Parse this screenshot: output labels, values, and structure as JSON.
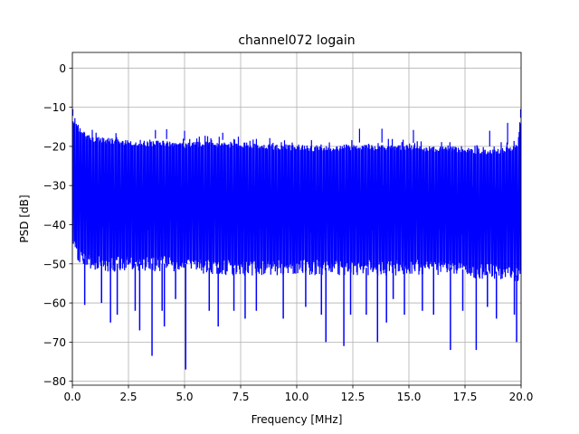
{
  "chart_data": {
    "type": "line",
    "title": "channel072 logain",
    "xlabel": "Frequency [MHz]",
    "ylabel": "PSD [dB]",
    "xlim": [
      0,
      20
    ],
    "ylim": [
      -81,
      4
    ],
    "xticks": [
      0,
      2.5,
      5,
      7.5,
      10,
      12.5,
      15,
      17.5,
      20
    ],
    "xtick_labels": [
      "0.0",
      "2.5",
      "5.0",
      "7.5",
      "10.0",
      "12.5",
      "15.0",
      "17.5",
      "20.0"
    ],
    "yticks": [
      0,
      -10,
      -20,
      -30,
      -40,
      -50,
      -60,
      -70,
      -80
    ],
    "ytick_labels": [
      "0",
      "−10",
      "−20",
      "−30",
      "−40",
      "−50",
      "−60",
      "−70",
      "−80"
    ],
    "grid": true,
    "series": [
      {
        "color": "#0000ff",
        "envelope": {
          "x": [
            0,
            0.1,
            0.3,
            0.6,
            1,
            2,
            3,
            4,
            5,
            6,
            7,
            8,
            9,
            10,
            11,
            12,
            13,
            14,
            15,
            16,
            17,
            18,
            19,
            19.8,
            20
          ],
          "upper": [
            -11,
            -12,
            -14,
            -15,
            -16,
            -16.5,
            -17,
            -17,
            -17.5,
            -17,
            -17.5,
            -17.5,
            -18,
            -18,
            -18.5,
            -18,
            -18,
            -18,
            -18,
            -18.5,
            -18.5,
            -19,
            -19,
            -18,
            -11
          ],
          "lower": [
            -44,
            -48,
            -50,
            -51,
            -52,
            -52,
            -52,
            -52,
            -52,
            -53,
            -53,
            -53,
            -53,
            -53,
            -53,
            -53,
            -53,
            -53,
            -53,
            -53,
            -53,
            -54,
            -54,
            -55,
            -55
          ]
        },
        "dips": [
          {
            "x": 0.25,
            "y": -49
          },
          {
            "x": 0.5,
            "y": -50
          },
          {
            "x": 0.55,
            "y": -60.5
          },
          {
            "x": 1.3,
            "y": -60
          },
          {
            "x": 1.7,
            "y": -65
          },
          {
            "x": 2.0,
            "y": -63
          },
          {
            "x": 2.8,
            "y": -62
          },
          {
            "x": 3.0,
            "y": -67
          },
          {
            "x": 3.55,
            "y": -73.5
          },
          {
            "x": 4.0,
            "y": -62
          },
          {
            "x": 4.1,
            "y": -66
          },
          {
            "x": 4.6,
            "y": -59
          },
          {
            "x": 5.05,
            "y": -77
          },
          {
            "x": 6.1,
            "y": -62
          },
          {
            "x": 6.5,
            "y": -66
          },
          {
            "x": 7.2,
            "y": -62
          },
          {
            "x": 7.7,
            "y": -64
          },
          {
            "x": 8.2,
            "y": -62
          },
          {
            "x": 9.4,
            "y": -64
          },
          {
            "x": 10.4,
            "y": -61
          },
          {
            "x": 11.1,
            "y": -63
          },
          {
            "x": 11.3,
            "y": -70
          },
          {
            "x": 12.1,
            "y": -71
          },
          {
            "x": 12.4,
            "y": -63
          },
          {
            "x": 13.1,
            "y": -63
          },
          {
            "x": 13.6,
            "y": -70
          },
          {
            "x": 14.0,
            "y": -65
          },
          {
            "x": 14.3,
            "y": -59
          },
          {
            "x": 14.8,
            "y": -63
          },
          {
            "x": 15.6,
            "y": -62
          },
          {
            "x": 16.1,
            "y": -63
          },
          {
            "x": 16.85,
            "y": -72
          },
          {
            "x": 17.4,
            "y": -62
          },
          {
            "x": 18.0,
            "y": -72
          },
          {
            "x": 18.5,
            "y": -61
          },
          {
            "x": 18.9,
            "y": -64
          },
          {
            "x": 19.7,
            "y": -63
          },
          {
            "x": 19.8,
            "y": -70
          }
        ],
        "peaks": [
          {
            "x": 0.02,
            "y": -10.5
          },
          {
            "x": 3.7,
            "y": -15.8
          },
          {
            "x": 4.2,
            "y": -15.6
          },
          {
            "x": 5.0,
            "y": -16.0
          },
          {
            "x": 6.7,
            "y": -16.5
          },
          {
            "x": 12.8,
            "y": -15.5
          },
          {
            "x": 13.8,
            "y": -15.5
          },
          {
            "x": 15.2,
            "y": -15.8
          },
          {
            "x": 18.6,
            "y": -16.0
          },
          {
            "x": 19.4,
            "y": -14.0
          },
          {
            "x": 19.98,
            "y": -10.5
          }
        ]
      }
    ]
  }
}
